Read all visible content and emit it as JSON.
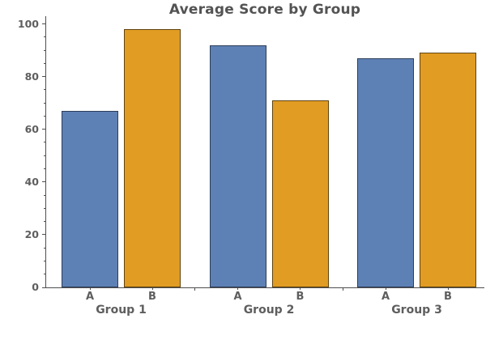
{
  "chart_data": {
    "type": "bar",
    "title": "Average Score by Group",
    "groups": [
      "Group 1",
      "Group 2",
      "Group 3"
    ],
    "series": [
      {
        "name": "A",
        "color": "#5E81B5",
        "edge_color": "#2c3d58",
        "values": [
          67,
          92,
          87
        ]
      },
      {
        "name": "B",
        "color": "#E19C24",
        "edge_color": "#5f430f",
        "values": [
          98,
          71,
          89
        ]
      }
    ],
    "xlabel": "",
    "ylabel": "",
    "ylim": [
      0,
      100
    ],
    "y_ticks": [
      0,
      20,
      40,
      60,
      80,
      100
    ],
    "y_minor_step": 5,
    "grid": false,
    "legend": "none"
  },
  "style": {
    "background": "#ffffff",
    "axis_color": "#4f4f4f",
    "tick_label_color": "#5e5e5e",
    "group_label_color": "#5e5e5e",
    "title_color": "#535353"
  }
}
